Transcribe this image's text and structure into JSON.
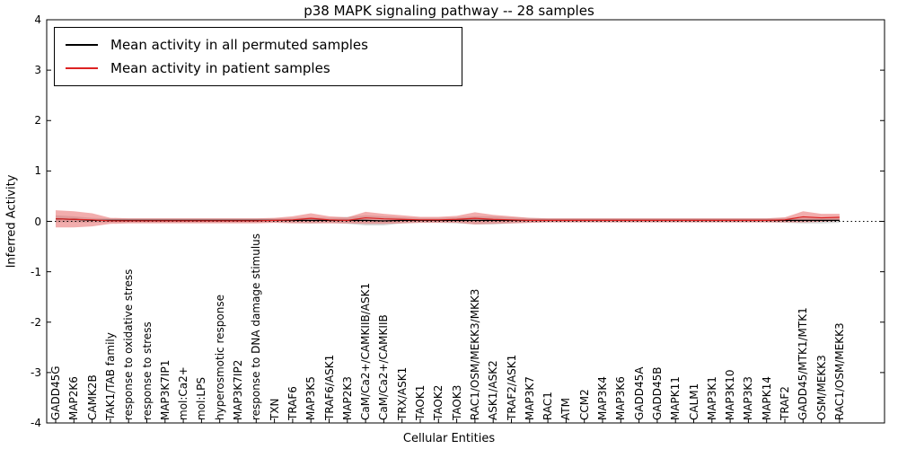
{
  "chart_data": {
    "type": "line",
    "title": "p38 MAPK signaling pathway -- 28 samples",
    "xlabel": "Cellular Entities",
    "ylabel": "Inferred Activity",
    "ylim": [
      -4,
      4
    ],
    "yticks": [
      -4,
      -3,
      -2,
      -1,
      0,
      1,
      2,
      3,
      4
    ],
    "grid": false,
    "legend_position": "upper left",
    "zero_reference_line": true,
    "colors": {
      "permuted_line": "#000000",
      "patient_line": "#dd2222",
      "permuted_band": "#999999",
      "patient_band": "#e86a6a",
      "frame": "#000000"
    },
    "categories": [
      "GADD45G",
      "MAP2K6",
      "CAMK2B",
      "TAK1/TAB family",
      "response to oxidative stress",
      "response to stress",
      "MAP3K7IP1",
      "mol:Ca2+",
      "mol:LPS",
      "hyperosmotic response",
      "MAP3K7IP2",
      "response to DNA damage stimulus",
      "TXN",
      "TRAF6",
      "MAP3K5",
      "TRAF6/ASK1",
      "MAP2K3",
      "CaM/Ca2+/CAMKIIB/ASK1",
      "CaM/Ca2+/CAMKIIB",
      "TRX/ASK1",
      "TAOK1",
      "TAOK2",
      "TAOK3",
      "RAC1/OSM/MEKK3/MKK3",
      "ASK1/ASK2",
      "TRAF2/ASK1",
      "MAP3K7",
      "RAC1",
      "ATM",
      "CCM2",
      "MAP3K4",
      "MAP3K6",
      "GADD45A",
      "GADD45B",
      "MAPK11",
      "CALM1",
      "MAP3K1",
      "MAP3K10",
      "MAP3K3",
      "MAPK14",
      "TRAF2",
      "GADD45/MTK1/MTK1",
      "OSM/MEKK3",
      "RAC1/OSM/MEKK3"
    ],
    "series": [
      {
        "name": "Mean activity in all permuted samples",
        "values": [
          0.05,
          0.04,
          0.02,
          0.02,
          0.02,
          0.02,
          0.02,
          0.02,
          0.02,
          0.02,
          0.02,
          0.02,
          0.02,
          0.02,
          0.02,
          0.02,
          0.02,
          0.02,
          0.01,
          0.02,
          0.02,
          0.02,
          0.02,
          0.02,
          0.02,
          0.02,
          0.02,
          0.02,
          0.02,
          0.02,
          0.02,
          0.02,
          0.02,
          0.02,
          0.02,
          0.02,
          0.02,
          0.02,
          0.02,
          0.02,
          0.02,
          0.02,
          0.02,
          0.02
        ],
        "band_halfwidth": [
          0.07,
          0.06,
          0.05,
          0.04,
          0.04,
          0.04,
          0.04,
          0.04,
          0.04,
          0.04,
          0.04,
          0.04,
          0.04,
          0.05,
          0.06,
          0.05,
          0.07,
          0.1,
          0.09,
          0.06,
          0.05,
          0.05,
          0.06,
          0.08,
          0.08,
          0.06,
          0.05,
          0.04,
          0.04,
          0.04,
          0.04,
          0.04,
          0.04,
          0.04,
          0.04,
          0.04,
          0.04,
          0.04,
          0.04,
          0.04,
          0.05,
          0.06,
          0.06,
          0.05
        ]
      },
      {
        "name": "Mean activity in patient samples",
        "values": [
          0.05,
          0.04,
          0.03,
          0.01,
          0.01,
          0.01,
          0.01,
          0.01,
          0.01,
          0.01,
          0.01,
          0.01,
          0.02,
          0.03,
          0.06,
          0.03,
          0.02,
          0.07,
          0.05,
          0.04,
          0.03,
          0.03,
          0.04,
          0.06,
          0.04,
          0.03,
          0.02,
          0.02,
          0.02,
          0.02,
          0.02,
          0.02,
          0.02,
          0.02,
          0.02,
          0.02,
          0.02,
          0.02,
          0.02,
          0.02,
          0.03,
          0.09,
          0.07,
          0.08
        ],
        "band_halfwidth": [
          0.17,
          0.16,
          0.13,
          0.06,
          0.05,
          0.05,
          0.05,
          0.05,
          0.05,
          0.05,
          0.05,
          0.05,
          0.05,
          0.07,
          0.1,
          0.07,
          0.06,
          0.12,
          0.1,
          0.08,
          0.06,
          0.06,
          0.07,
          0.12,
          0.09,
          0.07,
          0.05,
          0.04,
          0.04,
          0.04,
          0.04,
          0.04,
          0.04,
          0.04,
          0.04,
          0.04,
          0.04,
          0.04,
          0.04,
          0.04,
          0.05,
          0.11,
          0.08,
          0.07
        ]
      }
    ],
    "legend": [
      {
        "label": "Mean activity in all permuted samples",
        "color": "#000000"
      },
      {
        "label": "Mean activity in patient samples",
        "color": "#dd2222"
      }
    ]
  }
}
